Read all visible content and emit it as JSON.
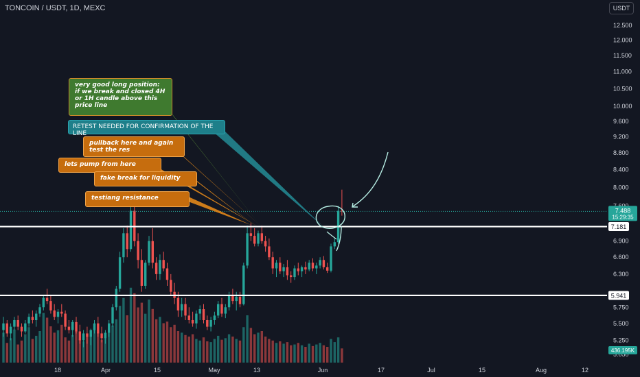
{
  "header": {
    "symbol_title": "TONCOIN / USDT, 1D, MEXC",
    "currency_button": "USDT"
  },
  "colors": {
    "background": "#131722",
    "up": "#26a69a",
    "down": "#ef5350",
    "axis_text": "#d1d4dc",
    "level_line": "#ffffff"
  },
  "annotations": {
    "long_position": "very good long position: if we break and closed 4H or 1H candle above this price line",
    "retest": "RETEST NEEDED FOR CONFIRMATION OF THE LINE",
    "pullback": "pullback here and again test the res",
    "pump": "lets pump from here",
    "fake_break": "fake break for liquidity",
    "resistance": "testiang resistance"
  },
  "chart_data": {
    "type": "candlestick",
    "price_scale": "log",
    "y_ticks": [
      "12.500",
      "12.000",
      "11.500",
      "11.000",
      "10.500",
      "10.000",
      "9.600",
      "9.200",
      "8.800",
      "8.400",
      "8.000",
      "7.600",
      "6.900",
      "6.600",
      "6.300",
      "5.750",
      "5.500",
      "5.250",
      "5.050"
    ],
    "x_ticks": [
      "18",
      "Apr",
      "15",
      "May",
      "13",
      "Jun",
      "17",
      "Jul",
      "15",
      "Aug",
      "12"
    ],
    "last_price_label": "7.488",
    "countdown_label": "15:29:35",
    "levels": [
      {
        "label": "7.181",
        "value": 7.181
      },
      {
        "label": "5.941",
        "value": 5.941
      }
    ],
    "volume_label": "436.195K",
    "candles": [
      {
        "o": 5.4,
        "h": 5.6,
        "l": 5.3,
        "c": 5.5
      },
      {
        "o": 5.5,
        "h": 5.55,
        "l": 5.3,
        "c": 5.35
      },
      {
        "o": 5.35,
        "h": 5.5,
        "l": 5.25,
        "c": 5.45
      },
      {
        "o": 5.45,
        "h": 5.6,
        "l": 5.4,
        "c": 5.55
      },
      {
        "o": 5.55,
        "h": 5.62,
        "l": 5.4,
        "c": 5.45
      },
      {
        "o": 5.45,
        "h": 5.5,
        "l": 5.3,
        "c": 5.38
      },
      {
        "o": 5.38,
        "h": 5.55,
        "l": 5.35,
        "c": 5.5
      },
      {
        "o": 5.5,
        "h": 5.65,
        "l": 5.45,
        "c": 5.6
      },
      {
        "o": 5.6,
        "h": 5.7,
        "l": 5.5,
        "c": 5.55
      },
      {
        "o": 5.55,
        "h": 5.7,
        "l": 5.45,
        "c": 5.65
      },
      {
        "o": 5.65,
        "h": 5.8,
        "l": 5.6,
        "c": 5.75
      },
      {
        "o": 5.75,
        "h": 5.95,
        "l": 5.7,
        "c": 5.9
      },
      {
        "o": 5.9,
        "h": 6.05,
        "l": 5.8,
        "c": 5.85
      },
      {
        "o": 5.85,
        "h": 5.95,
        "l": 5.65,
        "c": 5.7
      },
      {
        "o": 5.7,
        "h": 5.8,
        "l": 5.55,
        "c": 5.6
      },
      {
        "o": 5.6,
        "h": 5.72,
        "l": 5.5,
        "c": 5.68
      },
      {
        "o": 5.68,
        "h": 5.8,
        "l": 5.6,
        "c": 5.65
      },
      {
        "o": 5.65,
        "h": 5.7,
        "l": 5.4,
        "c": 5.45
      },
      {
        "o": 5.45,
        "h": 5.55,
        "l": 5.35,
        "c": 5.4
      },
      {
        "o": 5.4,
        "h": 5.55,
        "l": 5.3,
        "c": 5.52
      },
      {
        "o": 5.52,
        "h": 5.6,
        "l": 5.35,
        "c": 5.38
      },
      {
        "o": 5.38,
        "h": 5.48,
        "l": 5.2,
        "c": 5.25
      },
      {
        "o": 5.25,
        "h": 5.4,
        "l": 5.15,
        "c": 5.35
      },
      {
        "o": 5.35,
        "h": 5.45,
        "l": 5.2,
        "c": 5.3
      },
      {
        "o": 5.3,
        "h": 5.42,
        "l": 5.18,
        "c": 5.4
      },
      {
        "o": 5.4,
        "h": 5.55,
        "l": 5.35,
        "c": 5.5
      },
      {
        "o": 5.5,
        "h": 5.6,
        "l": 5.3,
        "c": 5.35
      },
      {
        "o": 5.35,
        "h": 5.45,
        "l": 5.22,
        "c": 5.28
      },
      {
        "o": 5.28,
        "h": 5.4,
        "l": 5.2,
        "c": 5.36
      },
      {
        "o": 5.36,
        "h": 5.55,
        "l": 5.3,
        "c": 5.5
      },
      {
        "o": 5.5,
        "h": 5.8,
        "l": 5.45,
        "c": 5.75
      },
      {
        "o": 5.75,
        "h": 6.1,
        "l": 5.7,
        "c": 6.05
      },
      {
        "o": 6.05,
        "h": 6.7,
        "l": 6.0,
        "c": 6.6
      },
      {
        "o": 6.6,
        "h": 7.15,
        "l": 6.5,
        "c": 7.05
      },
      {
        "o": 7.05,
        "h": 7.2,
        "l": 6.6,
        "c": 6.75
      },
      {
        "o": 6.75,
        "h": 7.6,
        "l": 6.7,
        "c": 7.5
      },
      {
        "o": 7.5,
        "h": 7.65,
        "l": 6.8,
        "c": 6.9
      },
      {
        "o": 6.9,
        "h": 7.05,
        "l": 6.4,
        "c": 6.55
      },
      {
        "o": 6.55,
        "h": 6.75,
        "l": 6.0,
        "c": 6.1
      },
      {
        "o": 6.1,
        "h": 6.55,
        "l": 6.05,
        "c": 6.5
      },
      {
        "o": 6.5,
        "h": 7.0,
        "l": 6.45,
        "c": 6.9
      },
      {
        "o": 6.9,
        "h": 7.15,
        "l": 6.4,
        "c": 6.5
      },
      {
        "o": 6.5,
        "h": 6.6,
        "l": 6.2,
        "c": 6.3
      },
      {
        "o": 6.3,
        "h": 6.65,
        "l": 6.2,
        "c": 6.55
      },
      {
        "o": 6.55,
        "h": 6.7,
        "l": 6.35,
        "c": 6.4
      },
      {
        "o": 6.4,
        "h": 6.5,
        "l": 6.1,
        "c": 6.2
      },
      {
        "o": 6.2,
        "h": 6.3,
        "l": 5.95,
        "c": 6.0
      },
      {
        "o": 6.0,
        "h": 6.15,
        "l": 5.8,
        "c": 5.9
      },
      {
        "o": 5.9,
        "h": 6.0,
        "l": 5.6,
        "c": 5.7
      },
      {
        "o": 5.7,
        "h": 5.9,
        "l": 5.6,
        "c": 5.8
      },
      {
        "o": 5.8,
        "h": 5.9,
        "l": 5.55,
        "c": 5.62
      },
      {
        "o": 5.62,
        "h": 5.75,
        "l": 5.5,
        "c": 5.55
      },
      {
        "o": 5.55,
        "h": 5.68,
        "l": 5.45,
        "c": 5.5
      },
      {
        "o": 5.5,
        "h": 5.7,
        "l": 5.42,
        "c": 5.65
      },
      {
        "o": 5.65,
        "h": 5.78,
        "l": 5.55,
        "c": 5.72
      },
      {
        "o": 5.72,
        "h": 5.8,
        "l": 5.5,
        "c": 5.55
      },
      {
        "o": 5.55,
        "h": 5.62,
        "l": 5.4,
        "c": 5.45
      },
      {
        "o": 5.45,
        "h": 5.6,
        "l": 5.38,
        "c": 5.55
      },
      {
        "o": 5.55,
        "h": 5.68,
        "l": 5.48,
        "c": 5.62
      },
      {
        "o": 5.62,
        "h": 5.85,
        "l": 5.58,
        "c": 5.8
      },
      {
        "o": 5.8,
        "h": 5.9,
        "l": 5.6,
        "c": 5.65
      },
      {
        "o": 5.65,
        "h": 5.8,
        "l": 5.58,
        "c": 5.75
      },
      {
        "o": 5.75,
        "h": 6.0,
        "l": 5.7,
        "c": 5.95
      },
      {
        "o": 5.95,
        "h": 6.05,
        "l": 5.8,
        "c": 5.85
      },
      {
        "o": 5.85,
        "h": 6.0,
        "l": 5.7,
        "c": 5.92
      },
      {
        "o": 5.92,
        "h": 6.0,
        "l": 5.75,
        "c": 5.8
      },
      {
        "o": 5.8,
        "h": 6.5,
        "l": 5.78,
        "c": 6.45
      },
      {
        "o": 6.45,
        "h": 7.2,
        "l": 6.4,
        "c": 7.05
      },
      {
        "o": 7.05,
        "h": 7.25,
        "l": 6.9,
        "c": 7.0
      },
      {
        "o": 7.0,
        "h": 7.15,
        "l": 6.8,
        "c": 6.85
      },
      {
        "o": 6.85,
        "h": 7.1,
        "l": 6.8,
        "c": 7.05
      },
      {
        "o": 7.05,
        "h": 7.2,
        "l": 6.85,
        "c": 6.9
      },
      {
        "o": 6.9,
        "h": 7.0,
        "l": 6.7,
        "c": 6.8
      },
      {
        "o": 6.8,
        "h": 6.95,
        "l": 6.55,
        "c": 6.6
      },
      {
        "o": 6.6,
        "h": 6.7,
        "l": 6.3,
        "c": 6.4
      },
      {
        "o": 6.4,
        "h": 6.55,
        "l": 6.25,
        "c": 6.5
      },
      {
        "o": 6.5,
        "h": 6.6,
        "l": 6.3,
        "c": 6.35
      },
      {
        "o": 6.35,
        "h": 6.48,
        "l": 6.25,
        "c": 6.42
      },
      {
        "o": 6.42,
        "h": 6.55,
        "l": 6.2,
        "c": 6.28
      },
      {
        "o": 6.28,
        "h": 6.35,
        "l": 6.15,
        "c": 6.25
      },
      {
        "o": 6.25,
        "h": 6.45,
        "l": 6.2,
        "c": 6.4
      },
      {
        "o": 6.4,
        "h": 6.5,
        "l": 6.28,
        "c": 6.35
      },
      {
        "o": 6.35,
        "h": 6.45,
        "l": 6.25,
        "c": 6.42
      },
      {
        "o": 6.42,
        "h": 6.52,
        "l": 6.3,
        "c": 6.38
      },
      {
        "o": 6.38,
        "h": 6.55,
        "l": 6.35,
        "c": 6.5
      },
      {
        "o": 6.5,
        "h": 6.58,
        "l": 6.35,
        "c": 6.4
      },
      {
        "o": 6.4,
        "h": 6.5,
        "l": 6.3,
        "c": 6.45
      },
      {
        "o": 6.45,
        "h": 6.6,
        "l": 6.4,
        "c": 6.55
      },
      {
        "o": 6.55,
        "h": 6.62,
        "l": 6.38,
        "c": 6.42
      },
      {
        "o": 6.42,
        "h": 6.5,
        "l": 6.32,
        "c": 6.36
      },
      {
        "o": 6.36,
        "h": 6.85,
        "l": 6.33,
        "c": 6.8
      },
      {
        "o": 6.8,
        "h": 6.95,
        "l": 6.75,
        "c": 6.88
      },
      {
        "o": 6.88,
        "h": 7.6,
        "l": 6.85,
        "c": 7.5
      },
      {
        "o": 7.5,
        "h": 7.95,
        "l": 7.4,
        "c": 7.49
      }
    ],
    "volumes": [
      0.38,
      0.25,
      0.31,
      0.42,
      0.23,
      0.28,
      0.36,
      0.45,
      0.3,
      0.34,
      0.4,
      0.63,
      0.57,
      0.46,
      0.38,
      0.41,
      0.48,
      0.32,
      0.28,
      0.35,
      0.4,
      0.3,
      0.27,
      0.33,
      0.36,
      0.42,
      0.39,
      0.29,
      0.31,
      0.38,
      0.47,
      0.55,
      0.72,
      0.82,
      0.6,
      0.95,
      0.88,
      0.7,
      0.76,
      0.62,
      0.8,
      0.68,
      0.55,
      0.58,
      0.5,
      0.52,
      0.45,
      0.48,
      0.4,
      0.38,
      0.35,
      0.33,
      0.36,
      0.3,
      0.28,
      0.32,
      0.27,
      0.26,
      0.3,
      0.34,
      0.29,
      0.31,
      0.36,
      0.33,
      0.3,
      0.28,
      0.45,
      0.6,
      0.44,
      0.36,
      0.38,
      0.4,
      0.33,
      0.3,
      0.28,
      0.25,
      0.27,
      0.24,
      0.26,
      0.22,
      0.23,
      0.25,
      0.22,
      0.2,
      0.24,
      0.21,
      0.23,
      0.25,
      0.22,
      0.2,
      0.3,
      0.26,
      0.32,
      0.18
    ]
  }
}
